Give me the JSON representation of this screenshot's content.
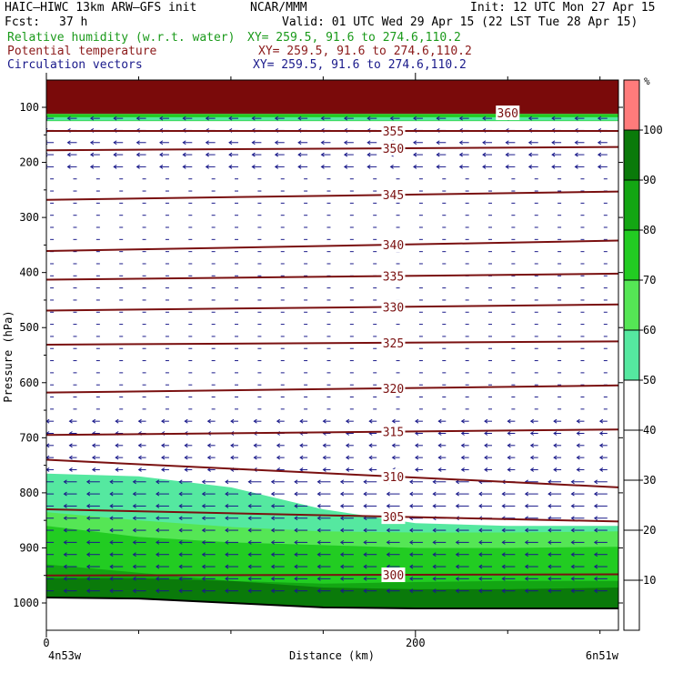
{
  "header": {
    "title": "HAIC–HIWC 13km ARW–GFS init",
    "org": "NCAR/MMM",
    "init": "Init: 12 UTC Mon 27 Apr 15",
    "fcst_label": "Fcst:",
    "fcst_value": "37 h",
    "valid": "Valid: 01 UTC Wed 29 Apr 15 (22 LST Tue 28 Apr 15)",
    "fields": [
      {
        "name": "Relative humidity (w.r.t. water)",
        "xy": "XY= 259.5, 91.6 to 274.6,110.2",
        "color": "#1a9a1a"
      },
      {
        "name": "Potential temperature",
        "xy": "XY= 259.5, 91.6 to 274.6,110.2",
        "color": "#8b1a1a"
      },
      {
        "name": "Circulation vectors",
        "xy": "XY= 259.5, 91.6 to 274.6,110.2",
        "color": "#1a1a8b"
      }
    ]
  },
  "chart_data": {
    "type": "cross-section",
    "ylabel": "Pressure (hPa)",
    "xlabel": "Distance (km)",
    "y_ticks": [
      100,
      200,
      300,
      400,
      500,
      600,
      700,
      800,
      900,
      1000
    ],
    "ylim": [
      1050,
      55
    ],
    "x_ticks": [
      0,
      200
    ],
    "xlim": [
      0,
      310
    ],
    "x_start_label": "4n53w",
    "x_end_label": "6n51w",
    "theta_contours": [
      {
        "value": 360,
        "p_start": 110,
        "p_end": 110,
        "label": "360",
        "label_x": 250
      },
      {
        "value": 355,
        "p_start": 143,
        "p_end": 143
      },
      {
        "value": 350,
        "p_start": 178,
        "p_end": 172
      },
      {
        "value": 345,
        "p_start": 268,
        "p_end": 253
      },
      {
        "value": 340,
        "p_start": 361,
        "p_end": 342
      },
      {
        "value": 335,
        "p_start": 413,
        "p_end": 402
      },
      {
        "value": 330,
        "p_start": 469,
        "p_end": 458
      },
      {
        "value": 325,
        "p_start": 531,
        "p_end": 525
      },
      {
        "value": 320,
        "p_start": 618,
        "p_end": 605
      },
      {
        "value": 315,
        "p_start": 695,
        "p_end": 685
      },
      {
        "value": 310,
        "p_start": 740,
        "p_end": 790
      },
      {
        "value": 305,
        "p_start": 830,
        "p_end": 852
      },
      {
        "value": 300,
        "p_start": 950,
        "p_end": 948
      }
    ],
    "rh_colorbar": {
      "unit": "%",
      "ticks": [
        10,
        20,
        30,
        40,
        50,
        60,
        70,
        80,
        90,
        100
      ],
      "bands": [
        {
          "from": 50,
          "to": 60,
          "color": "#55e8a0"
        },
        {
          "from": 60,
          "to": 70,
          "color": "#55e655"
        },
        {
          "from": 70,
          "to": 80,
          "color": "#22cc22"
        },
        {
          "from": 80,
          "to": 90,
          "color": "#13a613"
        },
        {
          "from": 90,
          "to": 100,
          "color": "#0a7a0a"
        },
        {
          "from": 100,
          "to": 110,
          "color": "#ff7b7b"
        }
      ]
    },
    "colors": {
      "theta": "#7a1010",
      "vectors": "#1a1a8a",
      "stratosphere": "#7a0a0a",
      "surface": "#000000"
    }
  }
}
